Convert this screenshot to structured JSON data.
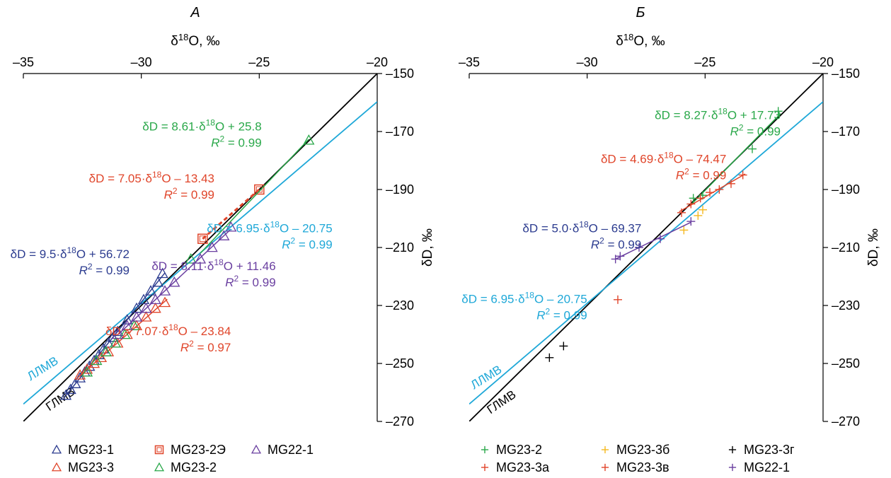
{
  "figure": {
    "chart_data": [
      {
        "panel_label": "А",
        "type": "scatter",
        "xlabel": "δ18O, ‰",
        "ylabel": "δD, ‰",
        "xlim": [
          -35,
          -20
        ],
        "ylim": [
          -270,
          -150
        ],
        "xticks": [
          -35,
          -30,
          -25,
          -20
        ],
        "yticks": [
          -150,
          -170,
          -190,
          -210,
          -230,
          -250,
          -270
        ],
        "reference_lines": [
          {
            "name": "ГЛМВ",
            "slope": 8,
            "intercept": 10,
            "color": "#000000",
            "label_at": [
              -33.9,
              -266.5
            ],
            "label_rot": -34
          },
          {
            "name": "ЛЛМВ",
            "slope": 6.95,
            "intercept": -20.75,
            "color": "#1fa8d8",
            "label_at": [
              -34.7,
              -256
            ],
            "label_rot": -32
          }
        ],
        "series": [
          {
            "name": "MG23-1",
            "marker": "triangle",
            "color": "#2b3b8f",
            "points": [
              [
                -33.2,
                -261
              ],
              [
                -33.0,
                -259
              ],
              [
                -32.8,
                -257
              ],
              [
                -32.6,
                -255
              ],
              [
                -32.4,
                -253
              ],
              [
                -32.2,
                -251
              ],
              [
                -32.0,
                -249
              ],
              [
                -31.8,
                -247
              ],
              [
                -31.6,
                -245
              ],
              [
                -31.4,
                -243
              ],
              [
                -31.2,
                -241
              ],
              [
                -31.0,
                -239
              ],
              [
                -30.6,
                -235
              ],
              [
                -30.2,
                -231
              ],
              [
                -29.9,
                -228
              ],
              [
                -29.6,
                -225
              ],
              [
                -29.3,
                -222
              ],
              [
                -29.1,
                -219
              ]
            ],
            "fit": {
              "x": [
                -33.3,
                -29.0
              ]
            }
          },
          {
            "name": "MG23-3",
            "marker": "triangle",
            "color": "#e0452a",
            "points": [
              [
                -32.6,
                -254
              ],
              [
                -32.3,
                -252
              ],
              [
                -32.0,
                -250
              ],
              [
                -31.7,
                -248
              ],
              [
                -31.4,
                -246
              ],
              [
                -31.0,
                -243
              ],
              [
                -30.6,
                -240
              ],
              [
                -30.2,
                -237
              ],
              [
                -29.8,
                -234
              ],
              [
                -29.4,
                -231
              ],
              [
                -29.0,
                -229
              ]
            ],
            "fit": {
              "x": [
                -32.7,
                -28.9
              ]
            }
          },
          {
            "name": "MG23-2Э",
            "marker": "square",
            "color": "#e0452a",
            "points": [
              [
                -27.4,
                -207
              ],
              [
                -25.0,
                -190
              ]
            ],
            "fit": {
              "x": [
                -27.4,
                -25.0
              ],
              "dashed": true
            }
          },
          {
            "name": "MG23-2",
            "marker": "triangle",
            "color": "#2aa84a",
            "points": [
              [
                -32.3,
                -253
              ],
              [
                -31.9,
                -249
              ],
              [
                -31.5,
                -246
              ],
              [
                -31.1,
                -243
              ],
              [
                -30.7,
                -240
              ],
              [
                -30.3,
                -237
              ],
              [
                -27.9,
                -214
              ],
              [
                -22.9,
                -173
              ]
            ],
            "fit": {
              "x": [
                -27.5,
                -22.9
              ]
            }
          },
          {
            "name": "MG22-1",
            "marker": "triangle",
            "color": "#6a3fa0",
            "points": [
              [
                -31.0,
                -240
              ],
              [
                -30.6,
                -237
              ],
              [
                -30.2,
                -234
              ],
              [
                -29.8,
                -231
              ],
              [
                -29.4,
                -228
              ],
              [
                -29.0,
                -225
              ],
              [
                -28.6,
                -222
              ],
              [
                -27.5,
                -214
              ],
              [
                -27.0,
                -210
              ],
              [
                -26.5,
                -206
              ],
              [
                -26.2,
                -203
              ]
            ],
            "fit": {
              "x": [
                -31.0,
                -26.2
              ]
            }
          }
        ],
        "equations": [
          {
            "line1": "δD = 8.61·δ18O + 25.8",
            "line2": "R2 = 0.99",
            "color": "#2aa84a",
            "at": [
              -24.9,
              -169.6
            ]
          },
          {
            "line1": "δD = 7.05·δ18O – 13.43",
            "line2": "R2 = 0.99",
            "color": "#e0452a",
            "at": [
              -26.9,
              -187.5
            ]
          },
          {
            "line1": "δD = 6.95·δ18O – 20.75",
            "line2": "R2 = 0.99",
            "color": "#1fa8d8",
            "at": [
              -21.9,
              -204.8
            ]
          },
          {
            "line1": "δD = 9.5·δ18O + 56.72",
            "line2": "R2 = 0.99",
            "color": "#2b3b8f",
            "at": [
              -30.5,
              -213.7
            ]
          },
          {
            "line1": "δD = 8.11·δ18O + 11.46",
            "line2": "R2 = 0.99",
            "color": "#6a3fa0",
            "at": [
              -24.3,
              -217.8
            ]
          },
          {
            "line1": "δD = 7.07·δ18O – 23.84",
            "line2": "R2 = 0.97",
            "color": "#e0452a",
            "at": [
              -26.2,
              -240.3
            ]
          }
        ]
      },
      {
        "panel_label": "Б",
        "type": "scatter",
        "xlabel": "δ18O, ‰",
        "ylabel": "δD, ‰",
        "xlim": [
          -35,
          -20
        ],
        "ylim": [
          -270,
          -150
        ],
        "xticks": [
          -35,
          -30,
          -25,
          -20
        ],
        "yticks": [
          -150,
          -170,
          -190,
          -210,
          -230,
          -250,
          -270
        ],
        "reference_lines": [
          {
            "name": "ГЛМВ",
            "slope": 8,
            "intercept": 10,
            "color": "#000000",
            "label_at": [
              -34.1,
              -267.5
            ],
            "label_rot": -34
          },
          {
            "name": "ЛЛМВ",
            "slope": 6.95,
            "intercept": -20.75,
            "color": "#1fa8d8",
            "label_at": [
              -34.8,
              -259
            ],
            "label_rot": -32
          }
        ],
        "series": [
          {
            "name": "MG23-2",
            "marker": "plus",
            "color": "#2aa84a",
            "points": [
              [
                -25.5,
                -193
              ],
              [
                -25.1,
                -192
              ],
              [
                -23.0,
                -176
              ],
              [
                -21.9,
                -163
              ]
            ],
            "fit": {
              "x": [
                -25.6,
                -21.8
              ]
            }
          },
          {
            "name": "MG23-3а",
            "marker": "plus",
            "color": "#e0452a",
            "points": [
              [
                -26.0,
                -198
              ],
              [
                -25.6,
                -195
              ],
              [
                -25.2,
                -193
              ],
              [
                -24.8,
                -191
              ],
              [
                -24.4,
                -190
              ],
              [
                -23.9,
                -188
              ],
              [
                -23.4,
                -185
              ]
            ],
            "fit": {
              "x": [
                -26.1,
                -23.3
              ]
            }
          },
          {
            "name": "MG23-3б",
            "marker": "plus",
            "color": "#f5b820",
            "points": [
              [
                -25.9,
                -204
              ],
              [
                -25.3,
                -199
              ],
              [
                -25.1,
                -197
              ]
            ]
          },
          {
            "name": "MG23-3в",
            "marker": "plus",
            "color": "#e0452a",
            "points": [
              [
                -28.7,
                -228
              ]
            ]
          },
          {
            "name": "MG23-3г",
            "marker": "plus",
            "color": "#000000",
            "points": [
              [
                -31.6,
                -248
              ],
              [
                -31.0,
                -244
              ]
            ]
          },
          {
            "name": "MG22-1",
            "marker": "plus",
            "color": "#6a3fa0",
            "points": [
              [
                -28.8,
                -214
              ],
              [
                -28.6,
                -213
              ],
              [
                -27.8,
                -210
              ],
              [
                -26.9,
                -207
              ],
              [
                -25.6,
                -201
              ]
            ],
            "fit": {
              "x": [
                -28.8,
                -25.6
              ]
            }
          }
        ],
        "equations": [
          {
            "line1": "δD = 8.27·δ18O + 17.73",
            "line2": "R2 = 0.99",
            "color": "#2aa84a",
            "at": [
              -21.8,
              -165.7
            ]
          },
          {
            "line1": "δD = 4.69·δ18O – 74.47",
            "line2": "R2 = 0.99",
            "color": "#e0452a",
            "at": [
              -24.1,
              -180.9
            ]
          },
          {
            "line1": "δD = 5.0·δ18O – 69.37",
            "line2": "R2 = 0.99",
            "color": "#2b3b8f",
            "at": [
              -27.7,
              -204.8
            ]
          },
          {
            "line1": "δD = 6.95·δ18O – 20.75",
            "line2": "R2 = 0.99",
            "color": "#1fa8d8",
            "at": [
              -30.0,
              -229.1
            ]
          }
        ]
      }
    ]
  }
}
